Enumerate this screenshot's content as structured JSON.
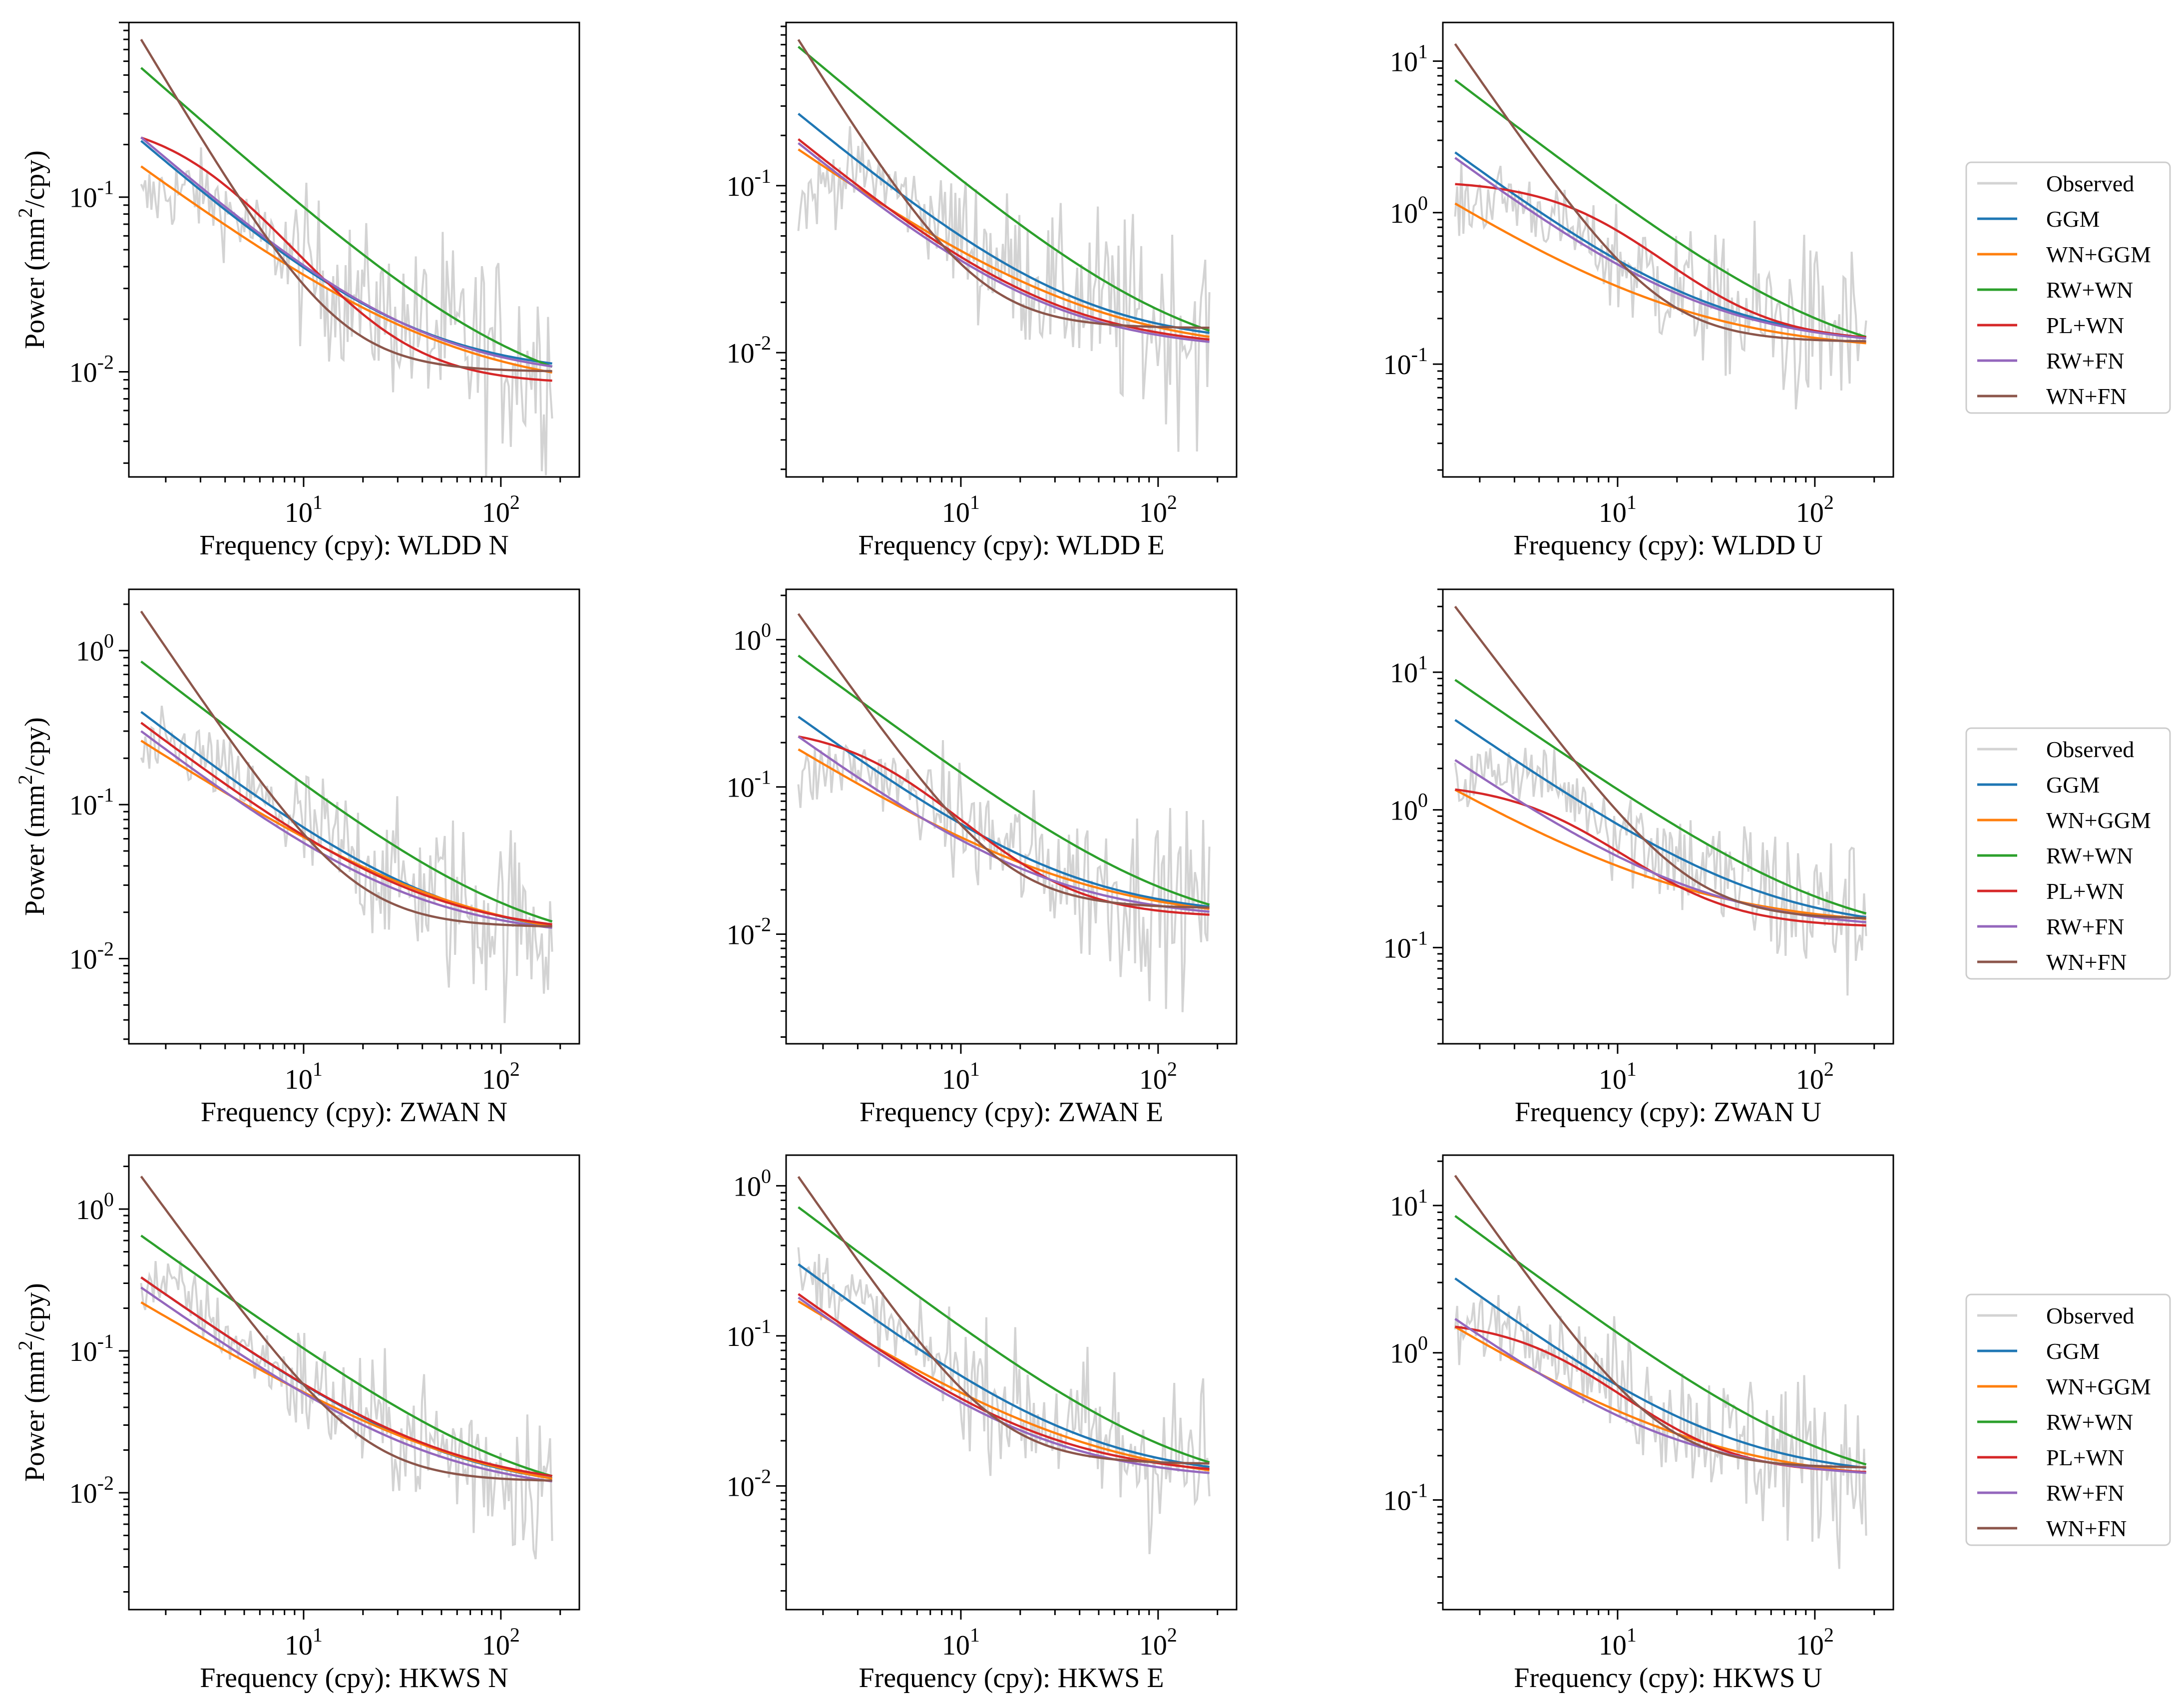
{
  "chart_data": {
    "type": "line",
    "grid": "3x3",
    "xscale": "log",
    "yscale": "log",
    "grid_lines": false,
    "legend_placement": "right of each row",
    "ylabel": "Power (mm²/cpy)",
    "ylabel_parts": {
      "prefix": "Power (mm",
      "sup": "2",
      "suffix": "/cpy)"
    },
    "xlim": [
      1.3,
      250
    ],
    "legend": [
      "Observed",
      "GGM",
      "WN+GGM",
      "RW+WN",
      "PL+WN",
      "RW+FN",
      "WN+FN"
    ],
    "colors": {
      "Observed": "#d3d3d3",
      "GGM": "#1f77b4",
      "WN+GGM": "#ff7f0e",
      "RW+WN": "#2ca02c",
      "PL+WN": "#d62728",
      "RW+FN": "#9467bd",
      "WN+FN": "#8c564b"
    },
    "panels": [
      {
        "xlabel": "Frequency (cpy): WLDD N",
        "ylim": [
          0.0025,
          1.0
        ],
        "yticks": [
          -2,
          -1
        ],
        "obs_start": 0.09,
        "models": {
          "GGM": [
            0.21,
            0.0095
          ],
          "WN+GGM": [
            0.15,
            0.0075
          ],
          "RW+WN": [
            0.55,
            0.0062
          ],
          "PL+WN": [
            0.28,
            0.0085,
            3.0
          ],
          "RW+FN": [
            0.22,
            0.009
          ],
          "WN+FN": [
            0.8,
            0.01
          ]
        }
      },
      {
        "xlabel": "Frequency (cpy): WLDD E",
        "ylim": [
          0.0018,
          0.95
        ],
        "yticks": [
          -2,
          -1
        ],
        "obs_start": 0.075,
        "models": {
          "GGM": [
            0.27,
            0.011
          ],
          "WN+GGM": [
            0.165,
            0.0098
          ],
          "RW+WN": [
            0.68,
            0.008
          ],
          "PL+WN": [
            0.19,
            0.0105
          ],
          "RW+FN": [
            0.18,
            0.0102
          ],
          "WN+FN": [
            0.75,
            0.014
          ]
        }
      },
      {
        "xlabel": "Frequency (cpy): WLDD U",
        "ylim": [
          0.018,
          18
        ],
        "yticks": [
          -1,
          0,
          1
        ],
        "obs_start": 1.0,
        "models": {
          "GGM": [
            2.5,
            0.13
          ],
          "WN+GGM": [
            1.15,
            0.12
          ],
          "RW+WN": [
            7.5,
            0.09
          ],
          "PL+WN": [
            1.5,
            0.14,
            8.0
          ],
          "RW+FN": [
            2.3,
            0.13
          ],
          "WN+FN": [
            13,
            0.14
          ]
        }
      },
      {
        "xlabel": "Frequency (cpy): ZWAN N",
        "ylim": [
          0.0028,
          2.5
        ],
        "yticks": [
          -2,
          -1,
          0
        ],
        "obs_start": 0.2,
        "models": {
          "GGM": [
            0.4,
            0.013
          ],
          "WN+GGM": [
            0.26,
            0.012
          ],
          "RW+WN": [
            0.85,
            0.0105
          ],
          "PL+WN": [
            0.34,
            0.014
          ],
          "RW+FN": [
            0.3,
            0.0135
          ],
          "WN+FN": [
            1.8,
            0.016
          ]
        }
      },
      {
        "xlabel": "Frequency (cpy): ZWAN E",
        "ylim": [
          0.0018,
          2.2
        ],
        "yticks": [
          -2,
          -1,
          0
        ],
        "obs_start": 0.1,
        "models": {
          "GGM": [
            0.3,
            0.013
          ],
          "WN+GGM": [
            0.18,
            0.012
          ],
          "RW+WN": [
            0.78,
            0.0095
          ],
          "PL+WN": [
            0.25,
            0.013,
            4.0
          ],
          "RW+FN": [
            0.22,
            0.0125
          ],
          "WN+FN": [
            1.5,
            0.015
          ]
        }
      },
      {
        "xlabel": "Frequency (cpy): ZWAN U",
        "ylim": [
          0.02,
          40
        ],
        "yticks": [
          -1,
          0,
          1
        ],
        "obs_start": 1.4,
        "models": {
          "GGM": [
            4.5,
            0.13
          ],
          "WN+GGM": [
            1.4,
            0.14
          ],
          "RW+WN": [
            8.8,
            0.105
          ],
          "PL+WN": [
            1.45,
            0.14,
            5.0
          ],
          "RW+FN": [
            2.3,
            0.135
          ],
          "WN+FN": [
            30,
            0.16
          ]
        }
      },
      {
        "xlabel": "Frequency (cpy): HKWS N",
        "ylim": [
          0.0015,
          2.4
        ],
        "yticks": [
          -2,
          -1,
          0
        ],
        "obs_start": 0.3,
        "models": {
          "GGM": [
            0.33,
            0.01
          ],
          "WN+GGM": [
            0.22,
            0.009
          ],
          "RW+WN": [
            0.65,
            0.0078
          ],
          "PL+WN": [
            0.33,
            0.0105
          ],
          "RW+FN": [
            0.28,
            0.0098
          ],
          "WN+FN": [
            1.7,
            0.012
          ]
        }
      },
      {
        "xlabel": "Frequency (cpy): HKWS E",
        "ylim": [
          0.0015,
          1.6
        ],
        "yticks": [
          -2,
          -1,
          0
        ],
        "obs_start": 0.23,
        "models": {
          "GGM": [
            0.3,
            0.011
          ],
          "WN+GGM": [
            0.17,
            0.01
          ],
          "RW+WN": [
            0.72,
            0.0085
          ],
          "PL+WN": [
            0.19,
            0.0115
          ],
          "RW+FN": [
            0.18,
            0.0108
          ],
          "WN+FN": [
            1.15,
            0.014
          ]
        }
      },
      {
        "xlabel": "Frequency (cpy): HKWS U",
        "ylim": [
          0.018,
          22
        ],
        "yticks": [
          -1,
          0,
          1
        ],
        "obs_start": 1.25,
        "models": {
          "GGM": [
            3.2,
            0.14
          ],
          "WN+GGM": [
            1.5,
            0.13
          ],
          "RW+WN": [
            8.5,
            0.105
          ],
          "PL+WN": [
            1.55,
            0.15,
            5.0
          ],
          "RW+FN": [
            1.7,
            0.14
          ],
          "WN+FN": [
            16,
            0.165
          ]
        }
      }
    ]
  }
}
